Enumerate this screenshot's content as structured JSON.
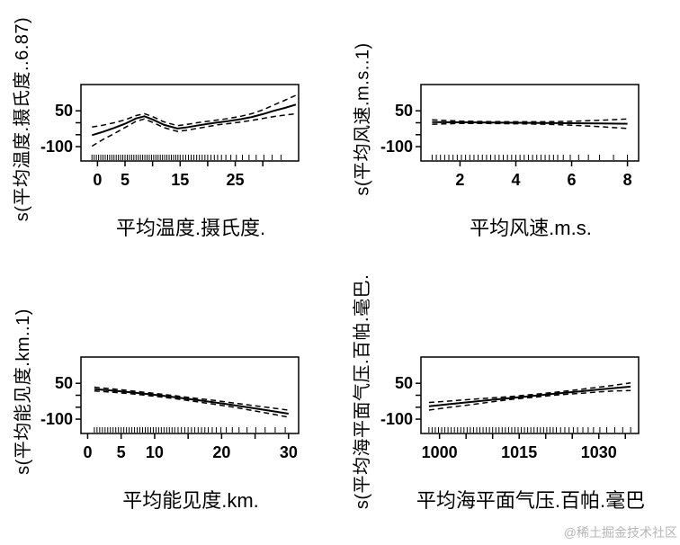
{
  "watermark": "@稀土掘金技术社区",
  "chart_data": [
    {
      "type": "line",
      "title": "",
      "xlabel": "平均温度.摄氏度.",
      "ylabel": "s(平均温度.摄氏度..6.87)",
      "xlim": [
        -3,
        36.5
      ],
      "ylim": [
        -160,
        160
      ],
      "grid": false,
      "legend": "none",
      "xticks": [
        [
          0,
          "0"
        ],
        [
          5,
          "5"
        ],
        [
          10,
          ""
        ],
        [
          15,
          "15"
        ],
        [
          20,
          ""
        ],
        [
          25,
          "25"
        ],
        [
          30,
          ""
        ]
      ],
      "yticks": [
        [
          -100,
          "-100"
        ],
        [
          -50,
          ""
        ],
        [
          0,
          ""
        ],
        [
          50,
          "50"
        ]
      ],
      "series": [
        {
          "name": "smooth-fit",
          "style": "solid",
          "x": [
            -1,
            1,
            3,
            5,
            7,
            8.5,
            10,
            12,
            14.5,
            16,
            18,
            20,
            22,
            24,
            26,
            28,
            30,
            32,
            34,
            36
          ],
          "y": [
            -52,
            -38,
            -22,
            -4,
            18,
            27,
            14,
            -8,
            -24,
            -20,
            -12,
            -5,
            2,
            8,
            15,
            24,
            36,
            50,
            62,
            76
          ]
        },
        {
          "name": "upper-95ci",
          "style": "dashed",
          "x": [
            -1,
            1,
            3,
            5,
            7,
            8.5,
            10,
            12,
            14.5,
            16,
            18,
            20,
            22,
            24,
            26,
            28,
            30,
            32,
            34,
            36
          ],
          "y": [
            -18,
            -10,
            0,
            12,
            30,
            38,
            26,
            4,
            -12,
            -8,
            0,
            6,
            12,
            19,
            27,
            38,
            54,
            74,
            94,
            115
          ]
        },
        {
          "name": "lower-95ci",
          "style": "dashed",
          "x": [
            -1,
            1,
            3,
            5,
            7,
            8.5,
            10,
            12,
            14.5,
            16,
            18,
            20,
            22,
            24,
            26,
            28,
            30,
            32,
            34,
            36
          ],
          "y": [
            -98,
            -70,
            -46,
            -20,
            6,
            16,
            2,
            -20,
            -36,
            -32,
            -24,
            -16,
            -8,
            -3,
            3,
            10,
            18,
            26,
            32,
            38
          ]
        }
      ],
      "rug_x": [
        -1,
        -0.6,
        -0.2,
        0.2,
        0.6,
        1,
        1.4,
        1.8,
        2.2,
        2.6,
        3,
        3.4,
        3.8,
        4.2,
        4.6,
        5,
        5.4,
        5.8,
        6.2,
        6.6,
        7,
        7.4,
        7.8,
        8.2,
        8.6,
        9,
        9.4,
        9.8,
        10.2,
        10.6,
        11,
        11.4,
        11.8,
        12.2,
        12.6,
        13,
        13.4,
        13.8,
        14.2,
        14.6,
        15,
        15.5,
        16,
        16.5,
        17,
        17.5,
        18,
        18.5,
        19,
        19.5,
        20,
        20.6,
        21.2,
        21.8,
        22.5,
        23.3,
        24.2,
        25.2,
        26.3,
        27.5,
        28.8,
        30.2,
        31.7,
        33.3
      ]
    },
    {
      "type": "line",
      "title": "",
      "xlabel": "平均风速.m.s.",
      "ylabel": "s(平均风速.m.s..1)",
      "xlim": [
        0.6,
        8.4
      ],
      "ylim": [
        -160,
        160
      ],
      "grid": false,
      "legend": "none",
      "xticks": [
        [
          2,
          "2"
        ],
        [
          4,
          "4"
        ],
        [
          6,
          "6"
        ],
        [
          8,
          "8"
        ]
      ],
      "yticks": [
        [
          -100,
          "-100"
        ],
        [
          -50,
          ""
        ],
        [
          0,
          ""
        ],
        [
          50,
          "50"
        ]
      ],
      "series": [
        {
          "name": "smooth-fit",
          "style": "solid",
          "x": [
            1,
            2,
            3,
            4,
            5,
            6,
            7,
            8
          ],
          "y": [
            3,
            2,
            1,
            0,
            -1,
            -2,
            -3,
            -4
          ]
        },
        {
          "name": "upper-95ci",
          "style": "dashed",
          "x": [
            1,
            2,
            3,
            4,
            5,
            6,
            7,
            8
          ],
          "y": [
            12,
            7,
            5,
            4,
            4,
            6,
            10,
            16
          ]
        },
        {
          "name": "lower-95ci",
          "style": "dashed",
          "x": [
            1,
            2,
            3,
            4,
            5,
            6,
            7,
            8
          ],
          "y": [
            -6,
            -3,
            -3,
            -4,
            -6,
            -10,
            -16,
            -24
          ]
        }
      ],
      "rug_x": [
        1,
        1.15,
        1.3,
        1.45,
        1.6,
        1.75,
        1.9,
        2.05,
        2.2,
        2.35,
        2.5,
        2.65,
        2.8,
        2.95,
        3.1,
        3.25,
        3.4,
        3.55,
        3.7,
        3.85,
        4,
        4.15,
        4.3,
        4.45,
        4.6,
        4.75,
        4.9,
        5.05,
        5.2,
        5.35,
        5.5,
        5.7,
        5.95,
        6.25,
        6.6,
        7,
        7.5,
        8
      ]
    },
    {
      "type": "line",
      "title": "",
      "xlabel": "平均能见度.km.",
      "ylabel": "s(平均能见度.km..1)",
      "xlim": [
        -1,
        31.5
      ],
      "ylim": [
        -160,
        160
      ],
      "grid": false,
      "legend": "none",
      "xticks": [
        [
          0,
          "0"
        ],
        [
          5,
          "5"
        ],
        [
          10,
          "10"
        ],
        [
          15,
          ""
        ],
        [
          20,
          "20"
        ],
        [
          25,
          ""
        ],
        [
          30,
          "30"
        ]
      ],
      "yticks": [
        [
          -100,
          "-100"
        ],
        [
          -50,
          ""
        ],
        [
          0,
          ""
        ],
        [
          50,
          "50"
        ]
      ],
      "series": [
        {
          "name": "smooth-fit",
          "style": "solid",
          "x": [
            1,
            4,
            7,
            10,
            13,
            16,
            19,
            22,
            25,
            28,
            30
          ],
          "y": [
            26,
            19,
            11,
            2,
            -8,
            -19,
            -30,
            -42,
            -55,
            -68,
            -77
          ]
        },
        {
          "name": "upper-95ci",
          "style": "dashed",
          "x": [
            1,
            4,
            7,
            10,
            13,
            16,
            19,
            22,
            25,
            28,
            30
          ],
          "y": [
            34,
            26,
            17,
            8,
            -2,
            -12,
            -22,
            -33,
            -44,
            -55,
            -62
          ]
        },
        {
          "name": "lower-95ci",
          "style": "dashed",
          "x": [
            1,
            4,
            7,
            10,
            13,
            16,
            19,
            22,
            25,
            28,
            30
          ],
          "y": [
            18,
            12,
            5,
            -4,
            -14,
            -26,
            -38,
            -51,
            -66,
            -81,
            -92
          ]
        }
      ],
      "rug_x": [
        1,
        1.4,
        1.8,
        2.2,
        2.6,
        3,
        3.4,
        3.8,
        4.2,
        4.6,
        5,
        5.4,
        5.8,
        6.2,
        6.6,
        7,
        7.4,
        7.8,
        8.2,
        8.6,
        9,
        9.4,
        9.8,
        10.2,
        10.6,
        11,
        11.4,
        11.8,
        12.2,
        12.6,
        13,
        13.5,
        14,
        14.5,
        15,
        15.5,
        16,
        16.5,
        17,
        17.5,
        18,
        18.6,
        19.2,
        19.9,
        20.7,
        21.6,
        22.6,
        23.8,
        25.1,
        26.5,
        28,
        29.5
      ]
    },
    {
      "type": "line",
      "title": "",
      "xlabel": "平均海平面气压.百帕.毫巴",
      "ylabel": "s(平均海平面气压.百帕.毫巴.",
      "xlim": [
        996.5,
        1037.5
      ],
      "ylim": [
        -160,
        160
      ],
      "grid": false,
      "legend": "none",
      "xticks": [
        [
          1000,
          "1000"
        ],
        [
          1005,
          ""
        ],
        [
          1010,
          ""
        ],
        [
          1015,
          "1015"
        ],
        [
          1020,
          ""
        ],
        [
          1025,
          ""
        ],
        [
          1030,
          "1030"
        ],
        [
          1035,
          ""
        ]
      ],
      "yticks": [
        [
          -100,
          "-100"
        ],
        [
          -50,
          ""
        ],
        [
          0,
          ""
        ],
        [
          50,
          "50"
        ]
      ],
      "series": [
        {
          "name": "smooth-fit",
          "style": "solid",
          "x": [
            998,
            1002,
            1006,
            1010,
            1014,
            1018,
            1022,
            1026,
            1030,
            1033,
            1036
          ],
          "y": [
            -46,
            -37,
            -28,
            -19,
            -10,
            -2,
            7,
            15,
            24,
            30,
            36
          ]
        },
        {
          "name": "upper-95ci",
          "style": "dashed",
          "x": [
            998,
            1002,
            1006,
            1010,
            1014,
            1018,
            1022,
            1026,
            1030,
            1033,
            1036
          ],
          "y": [
            -30,
            -24,
            -17,
            -11,
            -4,
            4,
            13,
            23,
            34,
            42,
            52
          ]
        },
        {
          "name": "lower-95ci",
          "style": "dashed",
          "x": [
            998,
            1002,
            1006,
            1010,
            1014,
            1018,
            1022,
            1026,
            1030,
            1033,
            1036
          ],
          "y": [
            -62,
            -50,
            -39,
            -27,
            -16,
            -8,
            1,
            7,
            14,
            18,
            20
          ]
        }
      ],
      "rug_x": [
        998,
        998.6,
        999.2,
        999.8,
        1000.4,
        1001,
        1001.6,
        1002.2,
        1002.8,
        1003.4,
        1004,
        1004.6,
        1005.2,
        1005.8,
        1006.4,
        1007,
        1007.6,
        1008.2,
        1008.8,
        1009.4,
        1010,
        1010.6,
        1011.2,
        1011.8,
        1012.4,
        1013,
        1013.6,
        1014.2,
        1014.8,
        1015.4,
        1016,
        1016.6,
        1017.2,
        1017.8,
        1018.4,
        1019,
        1019.6,
        1020.2,
        1020.8,
        1021.4,
        1022,
        1022.8,
        1023.6,
        1024.4,
        1025.2,
        1026,
        1027,
        1028,
        1029,
        1030.2,
        1031.5,
        1033,
        1034.5,
        1036
      ]
    }
  ]
}
